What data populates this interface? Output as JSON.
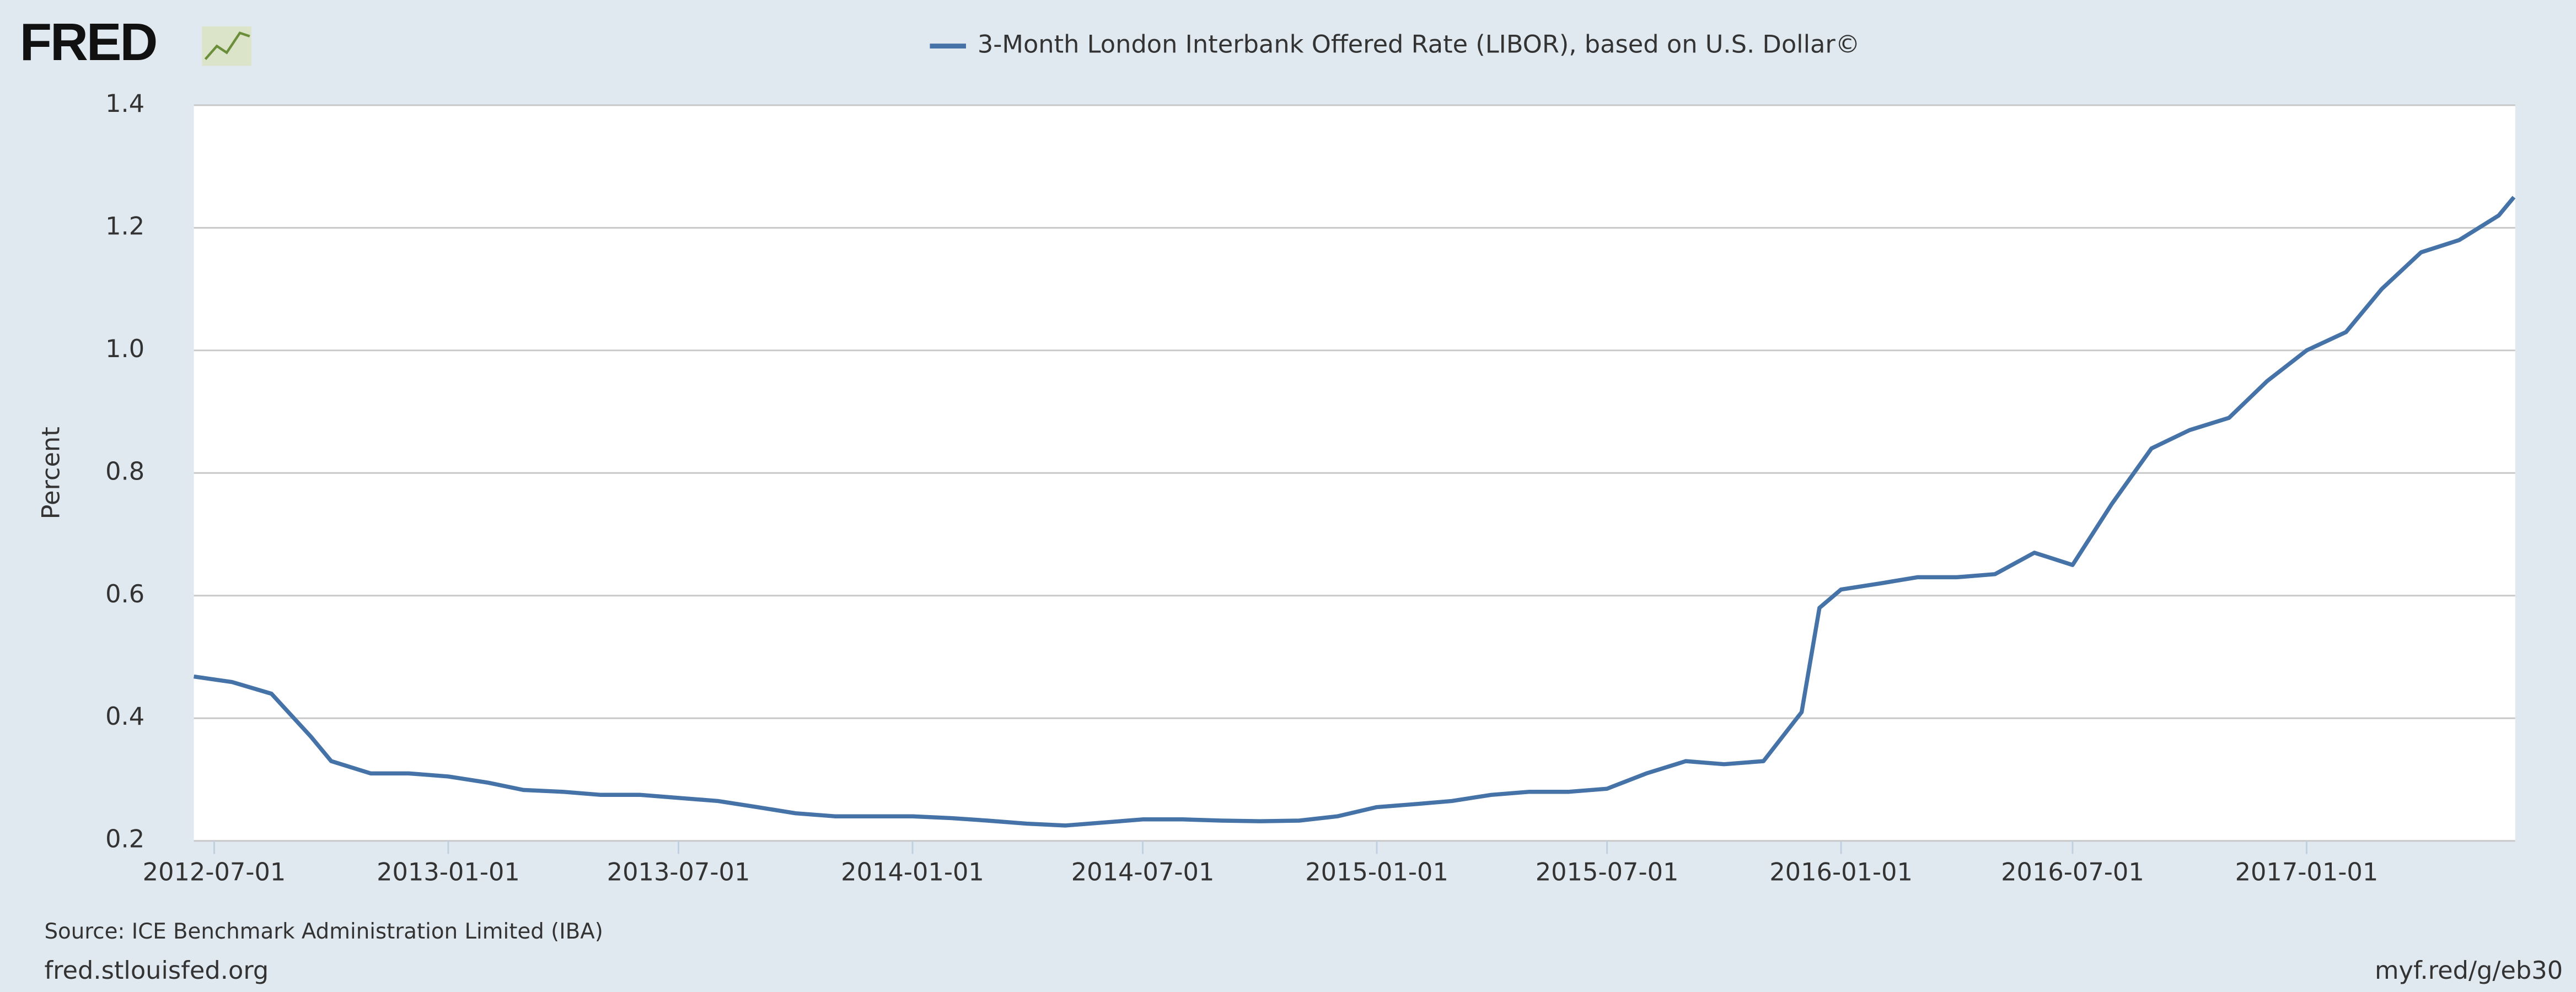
{
  "logo": "FRED",
  "source": "Source: ICE Benchmark Administration Limited (IBA)",
  "footer_left": "fred.stlouisfed.org",
  "footer_right": "myf.red/g/eb30",
  "chart_data": {
    "type": "line",
    "title": "3-Month London Interbank Offered Rate (LIBOR), based on U.S. Dollar©",
    "ylabel": "Percent",
    "grid": true,
    "xlim": [
      "2012-06-15",
      "2017-06-14"
    ],
    "xticks": [
      "2012-07-01",
      "2013-01-01",
      "2013-07-01",
      "2014-01-01",
      "2014-07-01",
      "2015-01-01",
      "2015-07-01",
      "2016-01-01",
      "2016-07-01",
      "2017-01-01"
    ],
    "ylim": [
      0.2,
      1.4
    ],
    "yticks": [
      0.2,
      0.4,
      0.6,
      0.8,
      {
        "value": 1,
        "label": "1.0"
      },
      1.2,
      1.4
    ],
    "x": [
      "2012-06-15",
      "2012-07-15",
      "2012-08-15",
      "2012-09-15",
      "2012-10-01",
      "2012-11-01",
      "2012-12-01",
      "2013-01-01",
      "2013-02-01",
      "2013-03-01",
      "2013-04-01",
      "2013-05-01",
      "2013-06-01",
      "2013-07-01",
      "2013-08-01",
      "2013-09-01",
      "2013-10-01",
      "2013-11-01",
      "2013-12-01",
      "2014-01-01",
      "2014-02-01",
      "2014-03-01",
      "2014-04-01",
      "2014-05-01",
      "2014-06-01",
      "2014-07-01",
      "2014-08-01",
      "2014-09-01",
      "2014-10-01",
      "2014-11-01",
      "2014-12-01",
      "2015-01-01",
      "2015-02-01",
      "2015-03-01",
      "2015-04-01",
      "2015-05-01",
      "2015-06-01",
      "2015-07-01",
      "2015-08-01",
      "2015-09-01",
      "2015-10-01",
      "2015-11-01",
      "2015-12-01",
      "2015-12-15",
      "2016-01-01",
      "2016-02-01",
      "2016-03-01",
      "2016-04-01",
      "2016-05-01",
      "2016-06-01",
      "2016-07-01",
      "2016-08-01",
      "2016-09-01",
      "2016-10-01",
      "2016-11-01",
      "2016-12-01",
      "2017-01-01",
      "2017-02-01",
      "2017-03-01",
      "2017-04-01",
      "2017-05-01",
      "2017-06-01",
      "2017-06-13"
    ],
    "series": [
      {
        "name": "3-Month London Interbank Offered Rate (LIBOR), based on U.S. Dollar©",
        "color": "#4572a7",
        "values": [
          0.468,
          0.459,
          0.44,
          0.37,
          0.33,
          0.31,
          0.31,
          0.305,
          0.295,
          0.283,
          0.28,
          0.275,
          0.275,
          0.27,
          0.265,
          0.255,
          0.245,
          0.24,
          0.24,
          0.24,
          0.237,
          0.233,
          0.228,
          0.225,
          0.23,
          0.235,
          0.235,
          0.233,
          0.232,
          0.233,
          0.24,
          0.255,
          0.26,
          0.265,
          0.275,
          0.28,
          0.28,
          0.285,
          0.31,
          0.33,
          0.325,
          0.33,
          0.41,
          0.58,
          0.61,
          0.62,
          0.63,
          0.63,
          0.635,
          0.67,
          0.65,
          0.75,
          0.84,
          0.87,
          0.89,
          0.95,
          1.0,
          1.03,
          1.1,
          1.16,
          1.18,
          1.22,
          1.25
        ]
      }
    ]
  }
}
